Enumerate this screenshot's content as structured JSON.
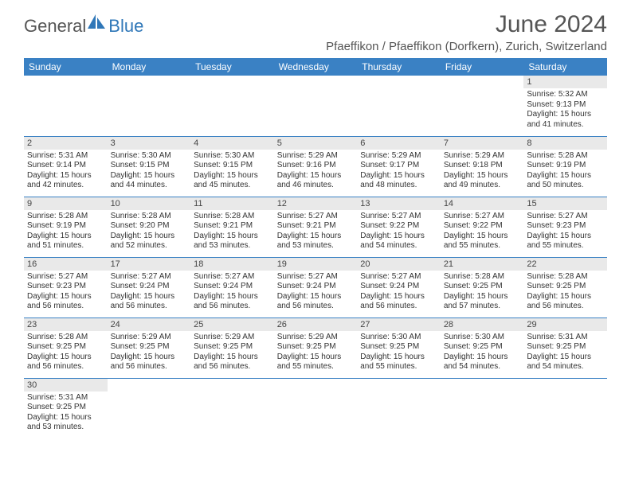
{
  "brand": {
    "part1": "General",
    "part2": "Blue",
    "icon_color": "#2f77b8"
  },
  "title": "June 2024",
  "location": "Pfaeffikon / Pfaeffikon (Dorfkern), Zurich, Switzerland",
  "colors": {
    "header_bg": "#3a81c4",
    "header_text": "#ffffff",
    "daynum_bg": "#e9e9e9",
    "row_border": "#3a81c4",
    "title_color": "#555555",
    "body_text": "#333333"
  },
  "weekdays": [
    "Sunday",
    "Monday",
    "Tuesday",
    "Wednesday",
    "Thursday",
    "Friday",
    "Saturday"
  ],
  "weeks": [
    [
      null,
      null,
      null,
      null,
      null,
      null,
      {
        "n": "1",
        "sr": "Sunrise: 5:32 AM",
        "ss": "Sunset: 9:13 PM",
        "dl": "Daylight: 15 hours and 41 minutes."
      }
    ],
    [
      {
        "n": "2",
        "sr": "Sunrise: 5:31 AM",
        "ss": "Sunset: 9:14 PM",
        "dl": "Daylight: 15 hours and 42 minutes."
      },
      {
        "n": "3",
        "sr": "Sunrise: 5:30 AM",
        "ss": "Sunset: 9:15 PM",
        "dl": "Daylight: 15 hours and 44 minutes."
      },
      {
        "n": "4",
        "sr": "Sunrise: 5:30 AM",
        "ss": "Sunset: 9:15 PM",
        "dl": "Daylight: 15 hours and 45 minutes."
      },
      {
        "n": "5",
        "sr": "Sunrise: 5:29 AM",
        "ss": "Sunset: 9:16 PM",
        "dl": "Daylight: 15 hours and 46 minutes."
      },
      {
        "n": "6",
        "sr": "Sunrise: 5:29 AM",
        "ss": "Sunset: 9:17 PM",
        "dl": "Daylight: 15 hours and 48 minutes."
      },
      {
        "n": "7",
        "sr": "Sunrise: 5:29 AM",
        "ss": "Sunset: 9:18 PM",
        "dl": "Daylight: 15 hours and 49 minutes."
      },
      {
        "n": "8",
        "sr": "Sunrise: 5:28 AM",
        "ss": "Sunset: 9:19 PM",
        "dl": "Daylight: 15 hours and 50 minutes."
      }
    ],
    [
      {
        "n": "9",
        "sr": "Sunrise: 5:28 AM",
        "ss": "Sunset: 9:19 PM",
        "dl": "Daylight: 15 hours and 51 minutes."
      },
      {
        "n": "10",
        "sr": "Sunrise: 5:28 AM",
        "ss": "Sunset: 9:20 PM",
        "dl": "Daylight: 15 hours and 52 minutes."
      },
      {
        "n": "11",
        "sr": "Sunrise: 5:28 AM",
        "ss": "Sunset: 9:21 PM",
        "dl": "Daylight: 15 hours and 53 minutes."
      },
      {
        "n": "12",
        "sr": "Sunrise: 5:27 AM",
        "ss": "Sunset: 9:21 PM",
        "dl": "Daylight: 15 hours and 53 minutes."
      },
      {
        "n": "13",
        "sr": "Sunrise: 5:27 AM",
        "ss": "Sunset: 9:22 PM",
        "dl": "Daylight: 15 hours and 54 minutes."
      },
      {
        "n": "14",
        "sr": "Sunrise: 5:27 AM",
        "ss": "Sunset: 9:22 PM",
        "dl": "Daylight: 15 hours and 55 minutes."
      },
      {
        "n": "15",
        "sr": "Sunrise: 5:27 AM",
        "ss": "Sunset: 9:23 PM",
        "dl": "Daylight: 15 hours and 55 minutes."
      }
    ],
    [
      {
        "n": "16",
        "sr": "Sunrise: 5:27 AM",
        "ss": "Sunset: 9:23 PM",
        "dl": "Daylight: 15 hours and 56 minutes."
      },
      {
        "n": "17",
        "sr": "Sunrise: 5:27 AM",
        "ss": "Sunset: 9:24 PM",
        "dl": "Daylight: 15 hours and 56 minutes."
      },
      {
        "n": "18",
        "sr": "Sunrise: 5:27 AM",
        "ss": "Sunset: 9:24 PM",
        "dl": "Daylight: 15 hours and 56 minutes."
      },
      {
        "n": "19",
        "sr": "Sunrise: 5:27 AM",
        "ss": "Sunset: 9:24 PM",
        "dl": "Daylight: 15 hours and 56 minutes."
      },
      {
        "n": "20",
        "sr": "Sunrise: 5:27 AM",
        "ss": "Sunset: 9:24 PM",
        "dl": "Daylight: 15 hours and 56 minutes."
      },
      {
        "n": "21",
        "sr": "Sunrise: 5:28 AM",
        "ss": "Sunset: 9:25 PM",
        "dl": "Daylight: 15 hours and 57 minutes."
      },
      {
        "n": "22",
        "sr": "Sunrise: 5:28 AM",
        "ss": "Sunset: 9:25 PM",
        "dl": "Daylight: 15 hours and 56 minutes."
      }
    ],
    [
      {
        "n": "23",
        "sr": "Sunrise: 5:28 AM",
        "ss": "Sunset: 9:25 PM",
        "dl": "Daylight: 15 hours and 56 minutes."
      },
      {
        "n": "24",
        "sr": "Sunrise: 5:29 AM",
        "ss": "Sunset: 9:25 PM",
        "dl": "Daylight: 15 hours and 56 minutes."
      },
      {
        "n": "25",
        "sr": "Sunrise: 5:29 AM",
        "ss": "Sunset: 9:25 PM",
        "dl": "Daylight: 15 hours and 56 minutes."
      },
      {
        "n": "26",
        "sr": "Sunrise: 5:29 AM",
        "ss": "Sunset: 9:25 PM",
        "dl": "Daylight: 15 hours and 55 minutes."
      },
      {
        "n": "27",
        "sr": "Sunrise: 5:30 AM",
        "ss": "Sunset: 9:25 PM",
        "dl": "Daylight: 15 hours and 55 minutes."
      },
      {
        "n": "28",
        "sr": "Sunrise: 5:30 AM",
        "ss": "Sunset: 9:25 PM",
        "dl": "Daylight: 15 hours and 54 minutes."
      },
      {
        "n": "29",
        "sr": "Sunrise: 5:31 AM",
        "ss": "Sunset: 9:25 PM",
        "dl": "Daylight: 15 hours and 54 minutes."
      }
    ],
    [
      {
        "n": "30",
        "sr": "Sunrise: 5:31 AM",
        "ss": "Sunset: 9:25 PM",
        "dl": "Daylight: 15 hours and 53 minutes."
      },
      null,
      null,
      null,
      null,
      null,
      null
    ]
  ]
}
